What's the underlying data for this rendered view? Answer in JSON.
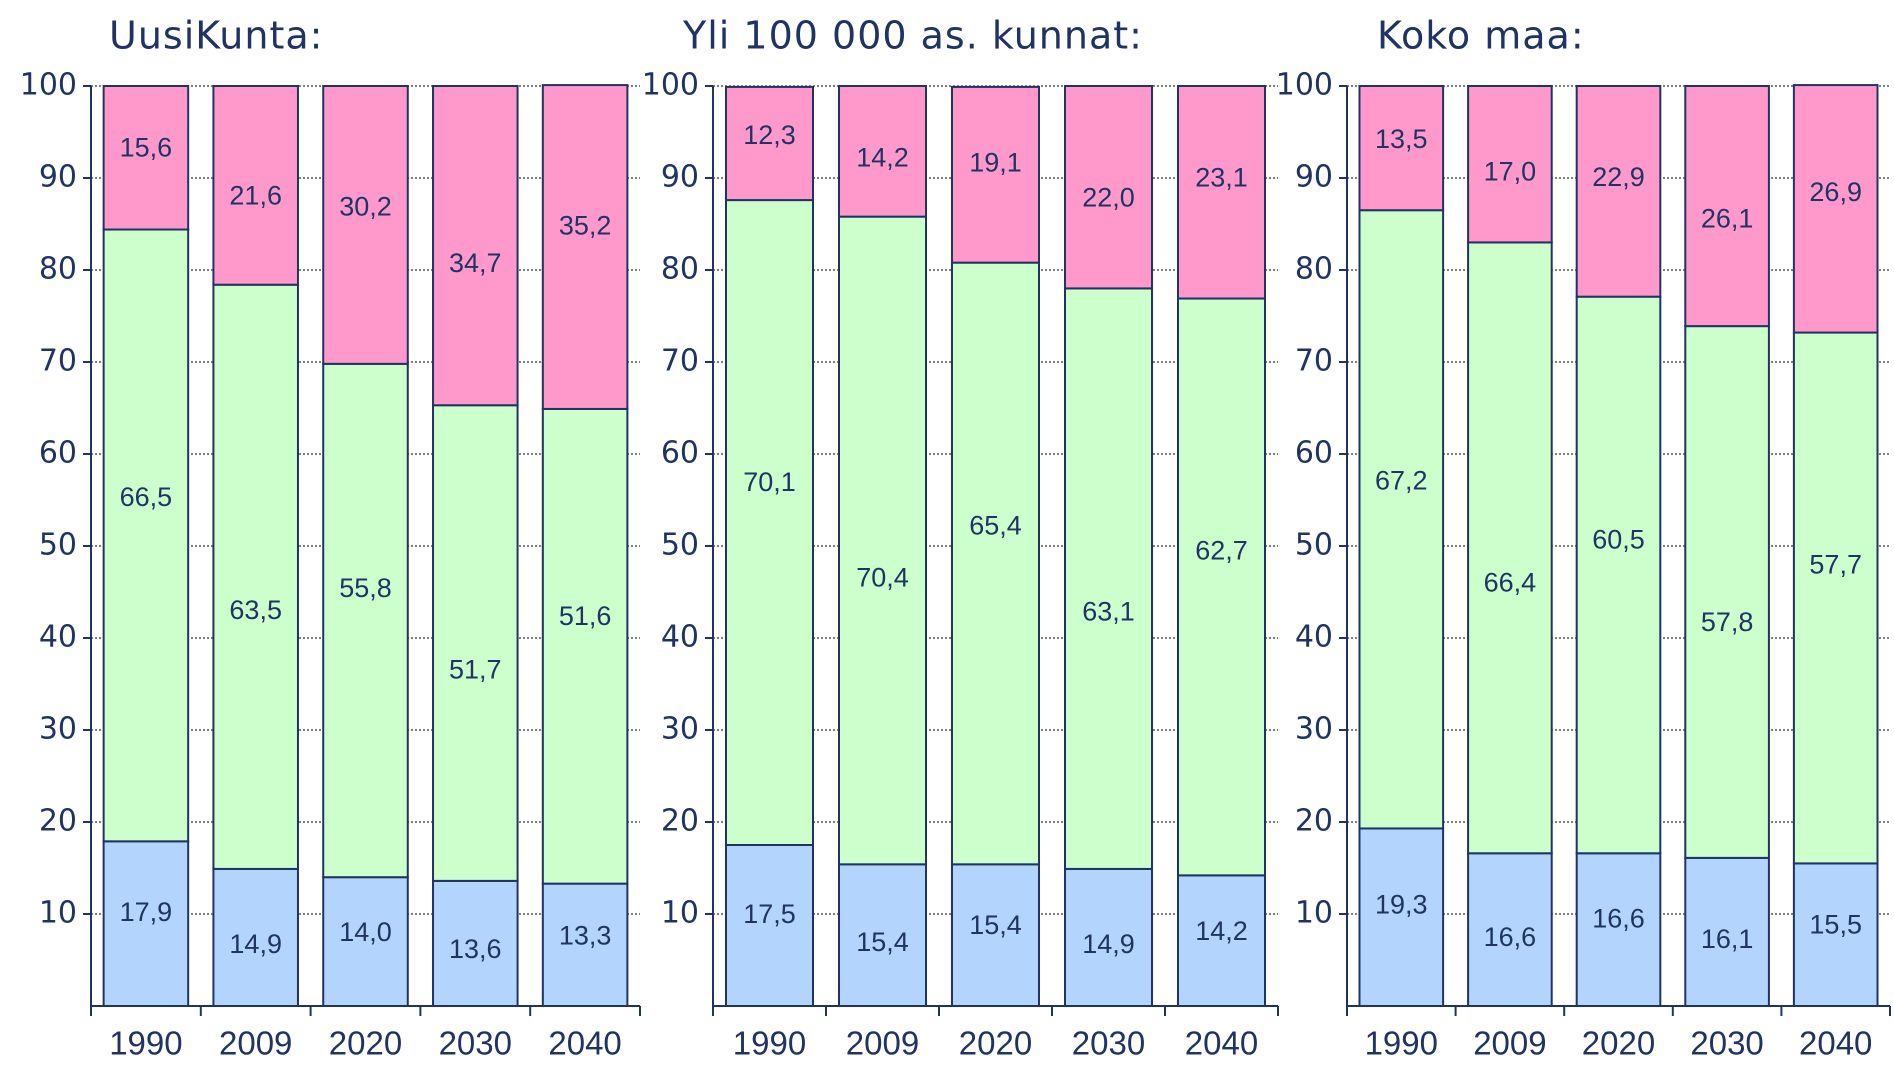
{
  "chart_data": [
    {
      "type": "bar",
      "stacked": true,
      "title": "UusiKunta:",
      "categories": [
        "1990",
        "2009",
        "2020",
        "2030",
        "2040"
      ],
      "ylim": [
        0,
        100
      ],
      "yticks": [
        10,
        20,
        30,
        40,
        50,
        60,
        70,
        80,
        90,
        100
      ],
      "grid": true,
      "series": [
        {
          "color": "#b3d4fc",
          "values": [
            17.9,
            14.9,
            14.0,
            13.6,
            13.3
          ],
          "value_labels": [
            "17,9",
            "14,9",
            "14,0",
            "13,6",
            "13,3"
          ]
        },
        {
          "color": "#ccffcc",
          "values": [
            66.5,
            63.5,
            55.8,
            51.7,
            51.6
          ],
          "value_labels": [
            "66,5",
            "63,5",
            "55,8",
            "51,7",
            "51,6"
          ]
        },
        {
          "color": "#ff99cc",
          "values": [
            15.6,
            21.6,
            30.2,
            34.7,
            35.2
          ],
          "value_labels": [
            "15,6",
            "21,6",
            "30,2",
            "34,7",
            "35,2"
          ]
        }
      ]
    },
    {
      "type": "bar",
      "stacked": true,
      "title": "Yli 100 000 as. kunnat:",
      "categories": [
        "1990",
        "2009",
        "2020",
        "2030",
        "2040"
      ],
      "ylim": [
        0,
        100
      ],
      "yticks": [
        10,
        20,
        30,
        40,
        50,
        60,
        70,
        80,
        90,
        100
      ],
      "grid": true,
      "series": [
        {
          "color": "#b3d4fc",
          "values": [
            17.5,
            15.4,
            15.4,
            14.9,
            14.2
          ],
          "value_labels": [
            "17,5",
            "15,4",
            "15,4",
            "14,9",
            "14,2"
          ]
        },
        {
          "color": "#ccffcc",
          "values": [
            70.1,
            70.4,
            65.4,
            63.1,
            62.7
          ],
          "value_labels": [
            "70,1",
            "70,4",
            "65,4",
            "63,1",
            "62,7"
          ]
        },
        {
          "color": "#ff99cc",
          "values": [
            12.3,
            14.2,
            19.1,
            22.0,
            23.1
          ],
          "value_labels": [
            "12,3",
            "14,2",
            "19,1",
            "22,0",
            "23,1"
          ]
        }
      ]
    },
    {
      "type": "bar",
      "stacked": true,
      "title": "Koko maa:",
      "categories": [
        "1990",
        "2009",
        "2020",
        "2030",
        "2040"
      ],
      "ylim": [
        0,
        100
      ],
      "yticks": [
        10,
        20,
        30,
        40,
        50,
        60,
        70,
        80,
        90,
        100
      ],
      "grid": true,
      "series": [
        {
          "color": "#b3d4fc",
          "values": [
            19.3,
            16.6,
            16.6,
            16.1,
            15.5
          ],
          "value_labels": [
            "19,3",
            "16,6",
            "16,6",
            "16,1",
            "15,5"
          ]
        },
        {
          "color": "#ccffcc",
          "values": [
            67.2,
            66.4,
            60.5,
            57.8,
            57.7
          ],
          "value_labels": [
            "67,2",
            "66,4",
            "60,5",
            "57,8",
            "57,7"
          ]
        },
        {
          "color": "#ff99cc",
          "values": [
            13.5,
            17.0,
            22.9,
            26.1,
            26.9
          ],
          "value_labels": [
            "13,5",
            "17,0",
            "22,9",
            "26,1",
            "26,9"
          ]
        }
      ]
    }
  ]
}
